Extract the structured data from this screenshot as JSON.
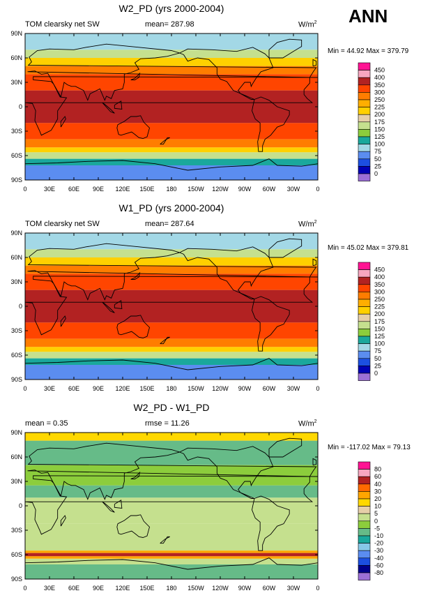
{
  "season": "ANN",
  "palette_std": [
    "#9c6fd6",
    "#0000b4",
    "#1c4fe0",
    "#5b8df0",
    "#a3d8e6",
    "#1aa89c",
    "#8ccd3c",
    "#c5e08e",
    "#e6cfa8",
    "#ffd000",
    "#ffae00",
    "#ff7d00",
    "#ff4500",
    "#b22222",
    "#f7a6c0",
    "#ff1493"
  ],
  "palette_diff": [
    "#9c6fd6",
    "#00008b",
    "#1c4fe0",
    "#5b8df0",
    "#87c8e8",
    "#1aa89c",
    "#66bb88",
    "#8ccd3c",
    "#c5e08e",
    "#e6cfa8",
    "#ffd800",
    "#ffa500",
    "#ff6a00",
    "#b22222",
    "#f7a6c0",
    "#ff1493"
  ],
  "chart_data": [
    {
      "type": "heatmap",
      "title": "W2_PD (yrs 2000-2004)",
      "variable": "TOM clearsky net SW",
      "mean_label": "mean= 287.98",
      "units_label": "W/m",
      "units_sup": "2",
      "minmax": "Min =  44.92 Max = 379.79",
      "xticks": [
        "0",
        "30E",
        "60E",
        "90E",
        "120E",
        "150E",
        "180",
        "150W",
        "120W",
        "90W",
        "60W",
        "30W",
        "0"
      ],
      "yticks": [
        "90N",
        "60N",
        "30N",
        "0",
        "30S",
        "60S",
        "90S"
      ],
      "levels": [
        "450",
        "400",
        "350",
        "300",
        "250",
        "225",
        "200",
        "175",
        "150",
        "125",
        "100",
        "75",
        "50",
        "25",
        "0"
      ],
      "bands": [
        {
          "lat": [
            70,
            90
          ],
          "value": 75
        },
        {
          "lat": [
            60,
            70
          ],
          "value": 150
        },
        {
          "lat": [
            50,
            60
          ],
          "value": 200
        },
        {
          "lat": [
            40,
            50
          ],
          "value": 250
        },
        {
          "lat": [
            30,
            40
          ],
          "value": 300
        },
        {
          "lat": [
            20,
            30
          ],
          "value": 320
        },
        {
          "lat": [
            -20,
            20
          ],
          "value": 360
        },
        {
          "lat": [
            -30,
            -20
          ],
          "value": 320
        },
        {
          "lat": [
            -40,
            -30
          ],
          "value": 300
        },
        {
          "lat": [
            -50,
            -40
          ],
          "value": 250
        },
        {
          "lat": [
            -56,
            -50
          ],
          "value": 200
        },
        {
          "lat": [
            -64,
            -56
          ],
          "value": 150
        },
        {
          "lat": [
            -72,
            -64
          ],
          "value": 100
        },
        {
          "lat": [
            -90,
            -72
          ],
          "value": 60
        }
      ]
    },
    {
      "type": "heatmap",
      "title": "W1_PD (yrs 2000-2004)",
      "variable": "TOM clearsky net SW",
      "mean_label": "mean= 287.64",
      "units_label": "W/m",
      "units_sup": "2",
      "minmax": "Min =  45.02 Max = 379.81",
      "xticks": [
        "0",
        "30E",
        "60E",
        "90E",
        "120E",
        "150E",
        "180",
        "150W",
        "120W",
        "90W",
        "60W",
        "30W",
        "0"
      ],
      "yticks": [
        "90N",
        "60N",
        "30N",
        "0",
        "30S",
        "60S",
        "90S"
      ],
      "levels": [
        "450",
        "400",
        "350",
        "300",
        "250",
        "225",
        "200",
        "175",
        "150",
        "125",
        "100",
        "75",
        "50",
        "25",
        "0"
      ],
      "bands": [
        {
          "lat": [
            70,
            90
          ],
          "value": 80
        },
        {
          "lat": [
            60,
            70
          ],
          "value": 150
        },
        {
          "lat": [
            50,
            60
          ],
          "value": 200
        },
        {
          "lat": [
            40,
            50
          ],
          "value": 250
        },
        {
          "lat": [
            30,
            40
          ],
          "value": 300
        },
        {
          "lat": [
            20,
            30
          ],
          "value": 320
        },
        {
          "lat": [
            -20,
            20
          ],
          "value": 360
        },
        {
          "lat": [
            -30,
            -20
          ],
          "value": 320
        },
        {
          "lat": [
            -40,
            -30
          ],
          "value": 300
        },
        {
          "lat": [
            -50,
            -40
          ],
          "value": 250
        },
        {
          "lat": [
            -56,
            -50
          ],
          "value": 200
        },
        {
          "lat": [
            -64,
            -56
          ],
          "value": 150
        },
        {
          "lat": [
            -72,
            -64
          ],
          "value": 100
        },
        {
          "lat": [
            -90,
            -72
          ],
          "value": 60
        }
      ]
    },
    {
      "type": "heatmap",
      "title": "W2_PD - W1_PD",
      "variable": "mean =  0.35",
      "mean_label": "rmse =  11.26",
      "units_label": "W/m",
      "units_sup": "2",
      "minmax": "Min = -117.02 Max =  79.13",
      "xticks": [
        "0",
        "30E",
        "60E",
        "90E",
        "120E",
        "150E",
        "180",
        "150W",
        "120W",
        "90W",
        "60W",
        "30W",
        "0"
      ],
      "yticks": [
        "90N",
        "60N",
        "30N",
        "0",
        "30S",
        "60S",
        "90S"
      ],
      "levels": [
        "80",
        "60",
        "40",
        "30",
        "20",
        "10",
        "5",
        "0",
        "-5",
        "-10",
        "-20",
        "-30",
        "-40",
        "-60",
        "-80"
      ],
      "bands": [
        {
          "lat": [
            80,
            90
          ],
          "value": 12
        },
        {
          "lat": [
            50,
            80
          ],
          "value": -8
        },
        {
          "lat": [
            25,
            50
          ],
          "value": -3
        },
        {
          "lat": [
            10,
            25
          ],
          "value": -7
        },
        {
          "lat": [
            0,
            10
          ],
          "value": 2
        },
        {
          "lat": [
            -22,
            0
          ],
          "value": 3
        },
        {
          "lat": [
            -55,
            -22
          ],
          "value": 4
        },
        {
          "lat": [
            -58,
            -55
          ],
          "value": 25
        },
        {
          "lat": [
            -62,
            -58
          ],
          "value": 45
        },
        {
          "lat": [
            -65,
            -62
          ],
          "value": 25
        },
        {
          "lat": [
            -72,
            -65
          ],
          "value": 2
        },
        {
          "lat": [
            -90,
            -72
          ],
          "value": -7
        }
      ]
    }
  ]
}
